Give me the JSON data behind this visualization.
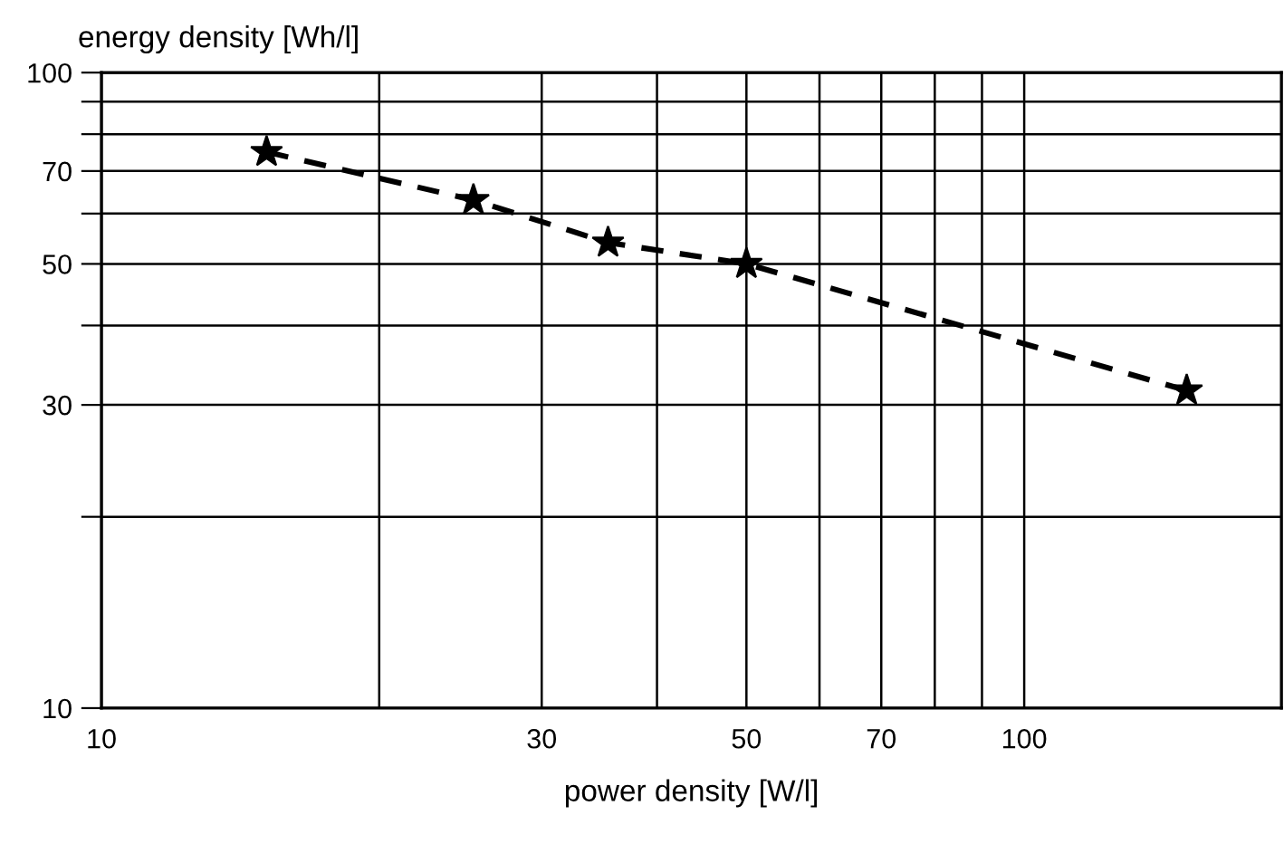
{
  "chart_data": {
    "type": "line",
    "xlabel": "power density [W/l]",
    "ylabel": "energy density [Wh/l]",
    "log": "xy",
    "x": [
      15.1,
      25.3,
      35.4,
      50,
      150
    ],
    "series": [
      {
        "color": "#000000",
        "values": [
          75,
          63,
          54,
          50,
          31.6
        ]
      }
    ],
    "xlim": [
      10,
      190
    ],
    "ylim": [
      10,
      100
    ],
    "xticks": [
      10,
      {
        "value": 20,
        "label": null
      },
      30,
      {
        "value": 40,
        "label": null
      },
      50,
      {
        "value": 60,
        "label": null
      },
      70,
      {
        "value": 80,
        "label": null
      },
      {
        "value": 90,
        "label": null
      },
      100
    ],
    "yticks": [
      10,
      {
        "value": 20,
        "label": null
      },
      30,
      {
        "value": 40,
        "label": null
      },
      50,
      {
        "value": 60,
        "label": null
      },
      70,
      {
        "value": 80,
        "label": null
      },
      {
        "value": 90,
        "label": null
      },
      100
    ],
    "grid": true,
    "marker": "star",
    "line_style": "dashed",
    "legend": false
  }
}
